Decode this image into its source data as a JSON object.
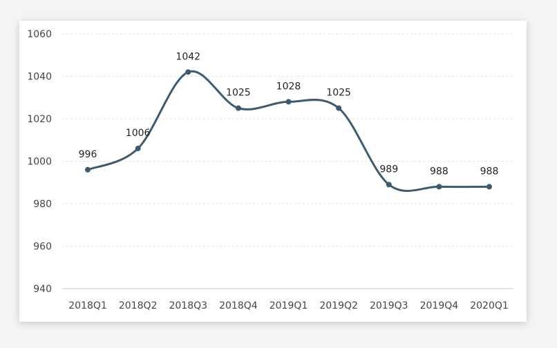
{
  "chart_data": {
    "type": "line",
    "title": "",
    "xlabel": "",
    "ylabel": "",
    "categories": [
      "2018Q1",
      "2018Q2",
      "2018Q3",
      "2018Q4",
      "2019Q1",
      "2019Q2",
      "2019Q3",
      "2019Q4",
      "2020Q1"
    ],
    "series": [
      {
        "values": [
          996,
          1006,
          1042,
          1025,
          1028,
          1025,
          989,
          988,
          988
        ]
      }
    ],
    "ylim": [
      940,
      1060
    ],
    "yticks": [
      940,
      960,
      980,
      1000,
      1020,
      1040,
      1060
    ],
    "smooth": true,
    "data_labels": true,
    "grid": "horizontal dashed",
    "legend": "none",
    "colors": {
      "line": "#3d5a6e",
      "marker": "#3d5a6e"
    }
  }
}
